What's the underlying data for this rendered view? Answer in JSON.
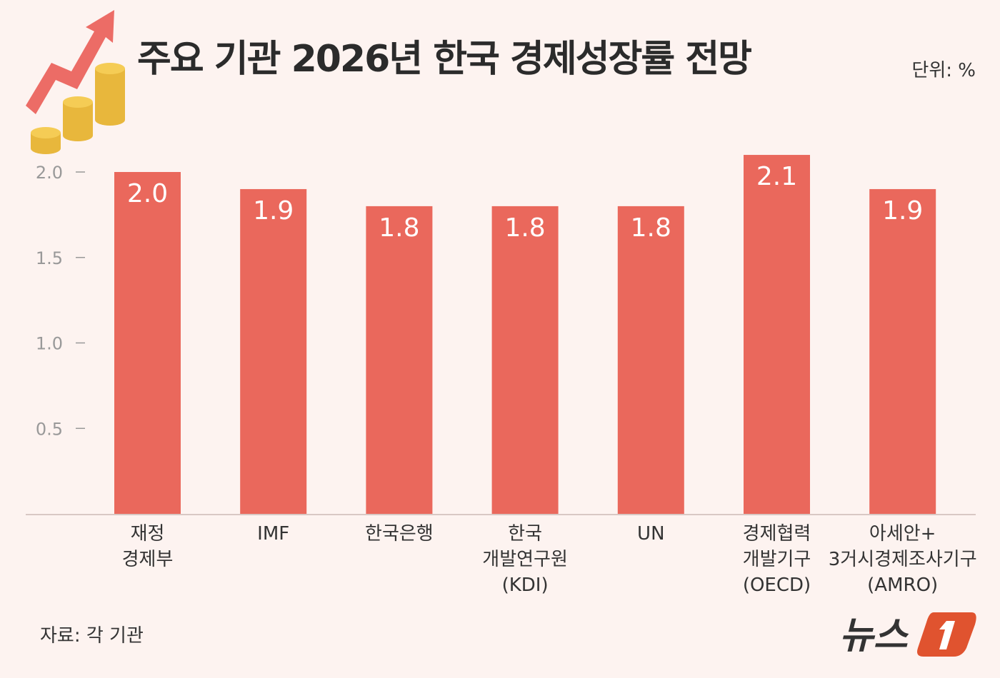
{
  "chart_data": {
    "type": "bar",
    "title": "주요 기관 2026년 한국 경제성장률 전망",
    "unit_label": "단위: %",
    "categories": [
      [
        "재정",
        "경제부"
      ],
      [
        "IMF"
      ],
      [
        "한국은행"
      ],
      [
        "한국",
        "개발연구원",
        "(KDI)"
      ],
      [
        "UN"
      ],
      [
        "경제협력",
        "개발기구",
        "(OECD)"
      ],
      [
        "아세안+",
        "3거시경제조사기구",
        "(AMRO)"
      ]
    ],
    "values": [
      2.0,
      1.9,
      1.8,
      1.8,
      1.8,
      2.1,
      1.9
    ],
    "value_labels": [
      "2.0",
      "1.9",
      "1.8",
      "1.8",
      "1.8",
      "2.1",
      "1.9"
    ],
    "y_ticks": [
      "0.5",
      "1.0",
      "1.5",
      "2.0"
    ],
    "y_tick_values": [
      0.5,
      1.0,
      1.5,
      2.0
    ],
    "ylim": [
      0,
      2.1
    ],
    "grid": false,
    "bar_color": "#ea685c"
  },
  "source": "자료: 각 기관",
  "logo": {
    "text": "뉴스1",
    "color": "#e0532f"
  }
}
